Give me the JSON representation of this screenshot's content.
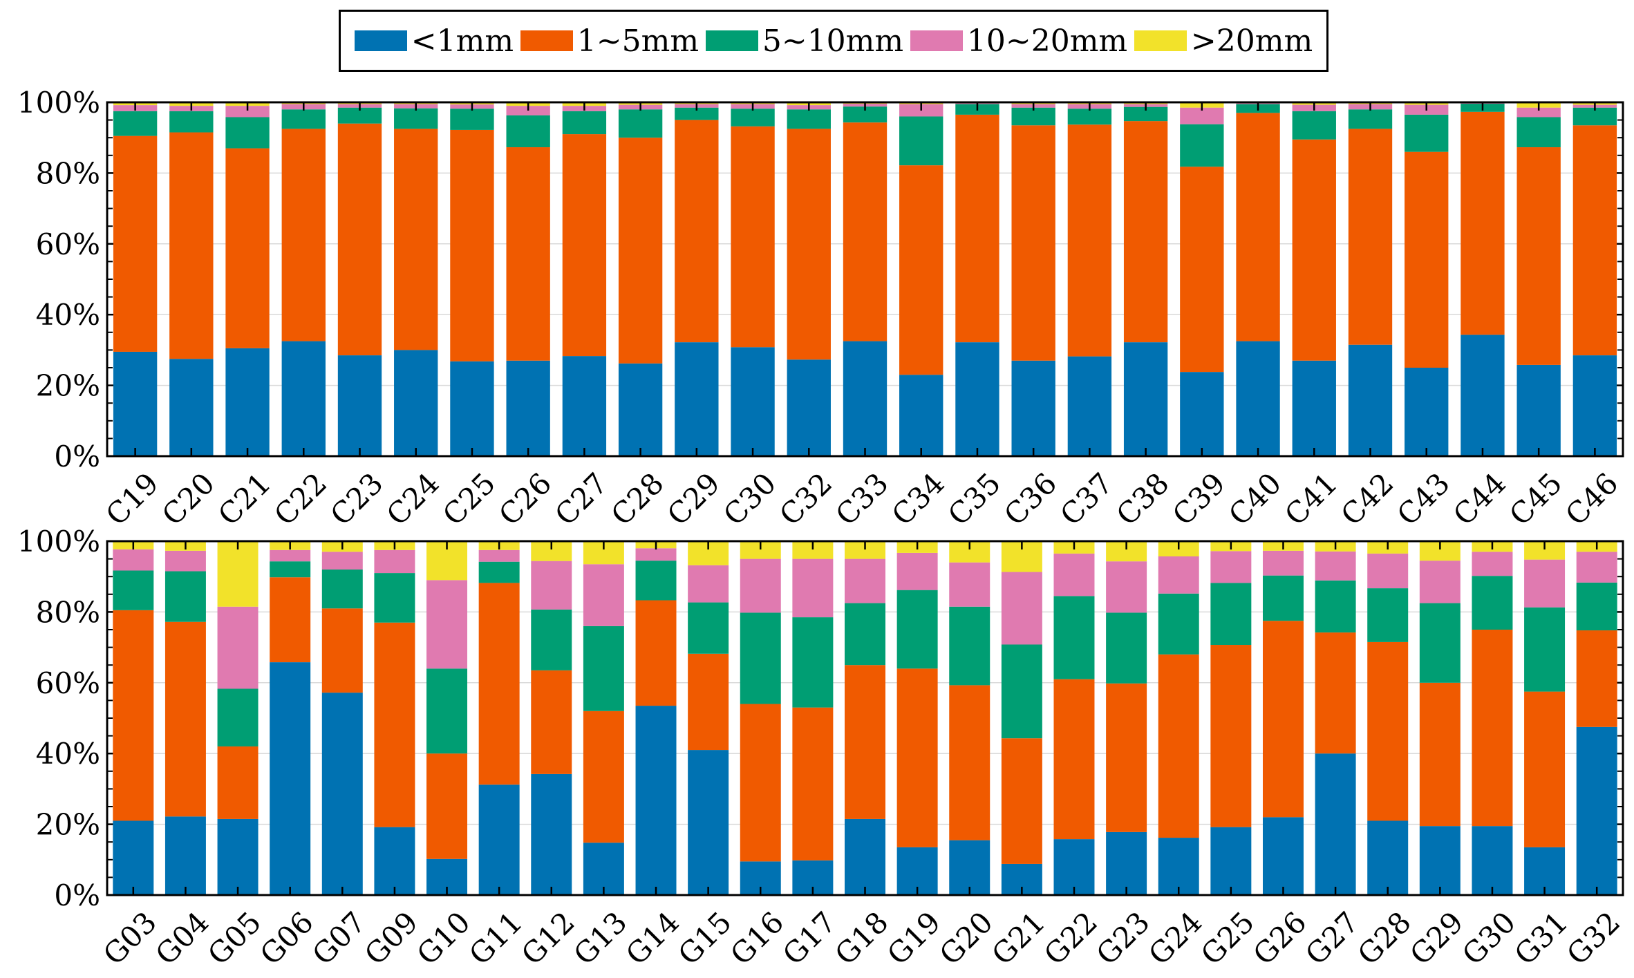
{
  "colors": {
    "<1mm": "#0072B2",
    "1~5mm": "#F05A00",
    "5~10mm": "#009E73",
    "10~20mm": "#E07AB0",
    ">20mm": "#F2E22A"
  },
  "chart_data": [
    {
      "type": "bar",
      "stacked": true,
      "title": "",
      "xlabel": "",
      "ylabel": "",
      "ylim": [
        0,
        100
      ],
      "yticks": [
        "0%",
        "20%",
        "40%",
        "60%",
        "80%",
        "100%"
      ],
      "legend": {
        "position": "top-center",
        "entries": [
          "<1mm",
          "1~5mm",
          "5~10mm",
          "10~20mm",
          ">20mm"
        ]
      },
      "categories": [
        "C19",
        "C20",
        "C21",
        "C22",
        "C23",
        "C24",
        "C25",
        "C26",
        "C27",
        "C28",
        "C29",
        "C30",
        "C32",
        "C33",
        "C34",
        "C35",
        "C36",
        "C37",
        "C38",
        "C39",
        "C40",
        "C41",
        "C42",
        "C43",
        "C44",
        "C45",
        "C46"
      ],
      "series": [
        {
          "name": "<1mm",
          "values": [
            29.5,
            27.5,
            30.5,
            32.5,
            28.5,
            30.0,
            26.8,
            27.0,
            28.3,
            26.2,
            32.2,
            30.8,
            27.3,
            32.5,
            23.0,
            32.2,
            27.0,
            28.2,
            32.2,
            23.8,
            32.5,
            27.0,
            31.5,
            25.0,
            34.3,
            25.8,
            28.5
          ]
        },
        {
          "name": "1~5mm",
          "values": [
            61.0,
            64.0,
            56.5,
            60.0,
            65.5,
            62.5,
            65.4,
            60.3,
            62.7,
            63.8,
            62.8,
            62.4,
            65.2,
            61.8,
            59.2,
            64.3,
            66.5,
            65.5,
            62.5,
            58.0,
            64.5,
            62.5,
            61.0,
            61.0,
            63.0,
            61.5,
            65.0
          ]
        },
        {
          "name": "5~10mm",
          "values": [
            7.0,
            6.0,
            8.8,
            5.5,
            4.5,
            5.8,
            6.0,
            9.0,
            6.5,
            8.0,
            3.5,
            5.0,
            5.5,
            4.5,
            13.8,
            3.0,
            5.0,
            4.5,
            4.0,
            12.0,
            2.5,
            8.0,
            5.5,
            10.5,
            2.3,
            8.5,
            5.0
          ]
        },
        {
          "name": "10~20mm",
          "values": [
            1.7,
            1.5,
            3.2,
            1.5,
            1.0,
            1.2,
            1.2,
            2.7,
            1.5,
            1.3,
            1.0,
            1.3,
            1.2,
            0.8,
            3.5,
            0.2,
            1.0,
            1.3,
            0.8,
            4.7,
            0.2,
            1.8,
            1.5,
            2.8,
            0.2,
            2.7,
            0.8
          ]
        },
        {
          "name": ">20mm",
          "values": [
            0.8,
            1.0,
            1.0,
            0.5,
            0.5,
            0.5,
            0.6,
            1.0,
            1.0,
            0.7,
            0.5,
            0.5,
            0.8,
            0.4,
            0.5,
            0.3,
            0.5,
            0.5,
            0.5,
            1.5,
            0.3,
            0.7,
            0.5,
            0.7,
            0.2,
            1.5,
            0.7
          ]
        }
      ]
    },
    {
      "type": "bar",
      "stacked": true,
      "title": "",
      "xlabel": "",
      "ylabel": "",
      "ylim": [
        0,
        100
      ],
      "yticks": [
        "0%",
        "20%",
        "40%",
        "60%",
        "80%",
        "100%"
      ],
      "categories": [
        "G03",
        "G04",
        "G05",
        "G06",
        "G07",
        "G09",
        "G10",
        "G11",
        "G12",
        "G13",
        "G14",
        "G15",
        "G16",
        "G17",
        "G18",
        "G19",
        "G20",
        "G21",
        "G22",
        "G23",
        "G24",
        "G25",
        "G26",
        "G27",
        "G28",
        "G29",
        "G30",
        "G31",
        "G32"
      ],
      "series": [
        {
          "name": "<1mm",
          "values": [
            21.0,
            22.2,
            21.5,
            65.8,
            57.2,
            19.2,
            10.2,
            31.2,
            34.2,
            14.8,
            53.5,
            41.0,
            9.5,
            9.8,
            21.5,
            13.5,
            15.5,
            8.8,
            15.8,
            17.8,
            16.2,
            19.2,
            22.0,
            40.0,
            21.0,
            19.5,
            19.5,
            13.5,
            47.5
          ]
        },
        {
          "name": "1~5mm",
          "values": [
            59.5,
            55.0,
            20.5,
            24.0,
            23.8,
            57.8,
            29.8,
            57.0,
            29.3,
            37.2,
            29.8,
            27.2,
            44.5,
            43.2,
            43.5,
            50.5,
            43.8,
            35.5,
            45.2,
            42.0,
            51.8,
            51.5,
            55.5,
            34.2,
            50.5,
            40.5,
            55.5,
            44.0,
            27.3
          ]
        },
        {
          "name": "5~10mm",
          "values": [
            11.2,
            14.3,
            16.3,
            4.5,
            11.0,
            14.0,
            24.0,
            6.0,
            17.2,
            24.0,
            11.2,
            14.5,
            25.8,
            25.5,
            17.5,
            22.2,
            22.2,
            26.5,
            23.5,
            20.0,
            17.2,
            17.5,
            12.8,
            14.7,
            15.2,
            22.5,
            15.2,
            23.8,
            13.5
          ]
        },
        {
          "name": "10~20mm",
          "values": [
            6.0,
            5.8,
            23.2,
            3.2,
            5.0,
            6.5,
            25.0,
            3.3,
            13.7,
            17.5,
            3.5,
            10.5,
            15.2,
            16.5,
            12.5,
            10.5,
            12.5,
            20.5,
            12.0,
            14.5,
            10.5,
            9.0,
            7.0,
            8.2,
            9.8,
            12.0,
            6.8,
            13.5,
            8.7
          ]
        },
        {
          "name": ">20mm",
          "values": [
            2.3,
            2.7,
            18.5,
            2.5,
            3.0,
            2.5,
            11.0,
            2.5,
            5.6,
            6.5,
            2.0,
            6.8,
            5.0,
            5.0,
            5.0,
            3.3,
            6.0,
            8.7,
            3.5,
            5.7,
            4.3,
            2.8,
            2.7,
            2.9,
            3.5,
            5.5,
            3.0,
            5.2,
            3.0
          ]
        }
      ]
    }
  ]
}
